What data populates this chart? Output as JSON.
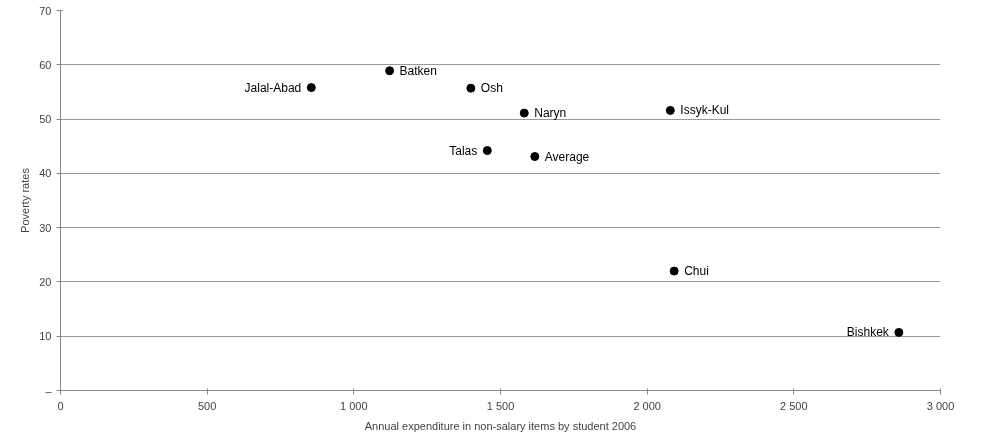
{
  "chart_data": {
    "type": "scatter",
    "xlabel": "Annual expenditure in non-salary items by student 2006",
    "ylabel": "Poverty rates",
    "x": [
      855,
      1122,
      1399,
      1581,
      2079,
      1455,
      1617,
      2092,
      2858
    ],
    "values": [
      55.8,
      58.9,
      55.7,
      51.1,
      51.6,
      44.2,
      43.1,
      22.0,
      10.7
    ],
    "color": "#000000",
    "marker": "circle",
    "grid": "y",
    "annotations": [
      {
        "text": "Jalal-Abad",
        "x": 855,
        "y": 55.8
      },
      {
        "text": "Batken",
        "x": 1122,
        "y": 58.9
      },
      {
        "text": "Osh",
        "x": 1399,
        "y": 55.7
      },
      {
        "text": "Naryn",
        "x": 1581,
        "y": 51.1
      },
      {
        "text": "Issyk-Kul",
        "x": 2079,
        "y": 51.6
      },
      {
        "text": "Talas",
        "x": 1455,
        "y": 44.2
      },
      {
        "text": "Average",
        "x": 1617,
        "y": 43.1
      },
      {
        "text": "Chui",
        "x": 2092,
        "y": 22.0
      },
      {
        "text": "Bishkek",
        "x": 2858,
        "y": 10.7
      }
    ],
    "xlim": [
      0,
      3000
    ],
    "xticks": [
      0,
      500,
      {
        "value": 1000,
        "label": "1 000"
      },
      {
        "value": 1500,
        "label": "1 500"
      },
      {
        "value": 2000,
        "label": "2 000"
      },
      {
        "value": 2500,
        "label": "2 500"
      },
      {
        "value": 3000,
        "label": "3 000"
      }
    ],
    "ylim": [
      0,
      70
    ],
    "yticks": [
      {
        "value": 0,
        "label": "–"
      },
      10,
      20,
      30,
      40,
      50,
      60,
      70
    ]
  }
}
